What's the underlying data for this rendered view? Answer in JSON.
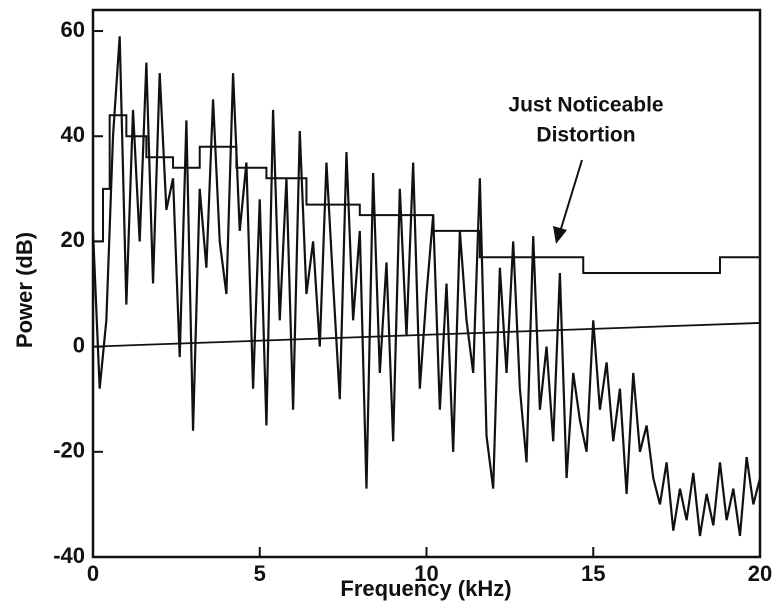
{
  "chart_data": {
    "type": "line",
    "xlabel": "Frequency (kHz)",
    "ylabel": "Power (dB)",
    "annotation": [
      "Just Noticeable",
      "Distortion"
    ],
    "xlim": [
      0,
      20
    ],
    "xticks": [
      0,
      5,
      10,
      15,
      20
    ],
    "ylim": [
      -40,
      64
    ],
    "yticks": [
      -40,
      -20,
      0,
      20,
      40,
      60
    ],
    "series": [
      {
        "color": "#111111",
        "width": 2.2,
        "x": [
          0,
          0.2,
          0.4,
          0.6,
          0.8,
          1.0,
          1.2,
          1.4,
          1.6,
          1.8,
          2.0,
          2.2,
          2.4,
          2.6,
          2.8,
          3.0,
          3.2,
          3.4,
          3.6,
          3.8,
          4.0,
          4.2,
          4.4,
          4.6,
          4.8,
          5.0,
          5.2,
          5.4,
          5.6,
          5.8,
          6.0,
          6.2,
          6.4,
          6.6,
          6.8,
          7.0,
          7.2,
          7.4,
          7.6,
          7.8,
          8.0,
          8.2,
          8.4,
          8.6,
          8.8,
          9.0,
          9.2,
          9.4,
          9.6,
          9.8,
          10.0,
          10.2,
          10.4,
          10.6,
          10.8,
          11.0,
          11.2,
          11.4,
          11.6,
          11.8,
          12.0,
          12.2,
          12.4,
          12.6,
          12.8,
          13.0,
          13.2,
          13.4,
          13.6,
          13.8,
          14.0,
          14.2,
          14.4,
          14.6,
          14.8,
          15.0,
          15.2,
          15.4,
          15.6,
          15.8,
          16.0,
          16.2,
          16.4,
          16.6,
          16.8,
          17.0,
          17.2,
          17.4,
          17.6,
          17.8,
          18.0,
          18.2,
          18.4,
          18.6,
          18.8,
          19.0,
          19.2,
          19.4,
          19.6,
          19.8,
          20.0
        ],
        "values": [
          22,
          -8,
          5,
          40,
          59,
          8,
          45,
          20,
          54,
          12,
          52,
          26,
          32,
          -2,
          43,
          -16,
          30,
          15,
          47,
          20,
          10,
          52,
          22,
          35,
          -8,
          28,
          -15,
          45,
          5,
          32,
          -12,
          41,
          10,
          20,
          0,
          35,
          12,
          -10,
          37,
          5,
          22,
          -27,
          33,
          -5,
          16,
          -18,
          30,
          2,
          35,
          -8,
          10,
          25,
          -12,
          12,
          -20,
          22,
          5,
          -5,
          32,
          -17,
          -27,
          15,
          -5,
          20,
          -8,
          -22,
          21,
          -12,
          0,
          -18,
          14,
          -25,
          -5,
          -14,
          -20,
          5,
          -12,
          -3,
          -18,
          -8,
          -28,
          -5,
          -20,
          -15,
          -25,
          -30,
          -22,
          -35,
          -27,
          -33,
          -24,
          -36,
          -28,
          -34,
          -22,
          -33,
          -27,
          -36,
          -21,
          -30,
          -25
        ]
      },
      {
        "color": "#111111",
        "width": 2,
        "x": [
          0,
          0.3,
          0.3,
          0.5,
          0.5,
          1.0,
          1.0,
          1.6,
          1.6,
          2.4,
          2.4,
          3.2,
          3.2,
          4.3,
          4.3,
          5.2,
          5.2,
          6.4,
          6.4,
          8.0,
          8.0,
          10.2,
          10.2,
          11.6,
          11.6,
          14.7,
          14.7,
          18.8,
          18.8,
          20
        ],
        "values": [
          20,
          20,
          30,
          30,
          44,
          44,
          40,
          40,
          36,
          36,
          34,
          34,
          38,
          38,
          34,
          34,
          32,
          32,
          27,
          27,
          25,
          25,
          22,
          22,
          17,
          17,
          14,
          14,
          17,
          17
        ]
      },
      {
        "color": "#111111",
        "width": 1.8,
        "x": [
          0,
          20
        ],
        "values": [
          0,
          4.5
        ]
      }
    ]
  }
}
